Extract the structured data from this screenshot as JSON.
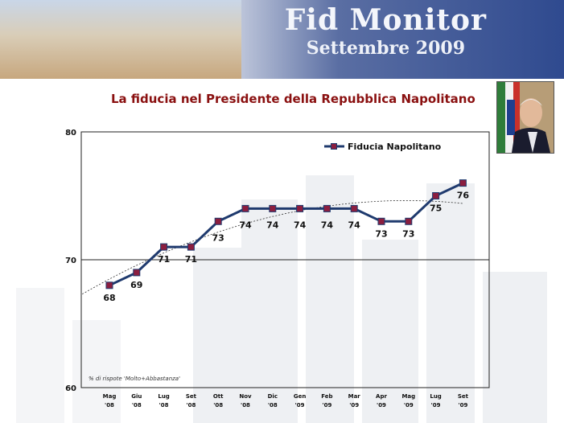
{
  "header": {
    "brand_line1": "Fid Monitor",
    "brand_line2": "Settembre 2009"
  },
  "title": "La fiducia nel Presidente della Repubblica Napolitano",
  "note": "% di rispote 'Molto+Abbastanza'",
  "colors": {
    "line": "#1f3a6e",
    "marker": "#8b1e3f",
    "title": "#8a1010",
    "trend": "#333333"
  },
  "chart_data": {
    "type": "line",
    "categories": [
      "Mag '08",
      "Giu '08",
      "Lug '08",
      "Set '08",
      "Ott '08",
      "Nov '08",
      "Dic '08",
      "Gen '09",
      "Feb '09",
      "Mar '09",
      "Apr '09",
      "Mag '09",
      "Lug '09",
      "Set '09"
    ],
    "category_labels": [
      [
        "Mag",
        "'08"
      ],
      [
        "Giu",
        "'08"
      ],
      [
        "Lug",
        "'08"
      ],
      [
        "Set",
        "'08"
      ],
      [
        "Ott",
        "'08"
      ],
      [
        "Nov",
        "'08"
      ],
      [
        "Dic",
        "'08"
      ],
      [
        "Gen",
        "'09"
      ],
      [
        "Feb",
        "'09"
      ],
      [
        "Mar",
        "'09"
      ],
      [
        "Apr",
        "'09"
      ],
      [
        "Mag",
        "'09"
      ],
      [
        "Lug",
        "'09"
      ],
      [
        "Set",
        "'09"
      ]
    ],
    "series": [
      {
        "name": "Fiducia Napolitano",
        "values": [
          68,
          69,
          71,
          71,
          73,
          74,
          74,
          74,
          74,
          74,
          73,
          73,
          75,
          76
        ]
      }
    ],
    "trendline": "polynomial (dashed)",
    "ylim": [
      60,
      80
    ],
    "yticks": [
      60,
      70,
      80
    ],
    "gridlines": [
      70
    ],
    "legend": "top-right"
  }
}
